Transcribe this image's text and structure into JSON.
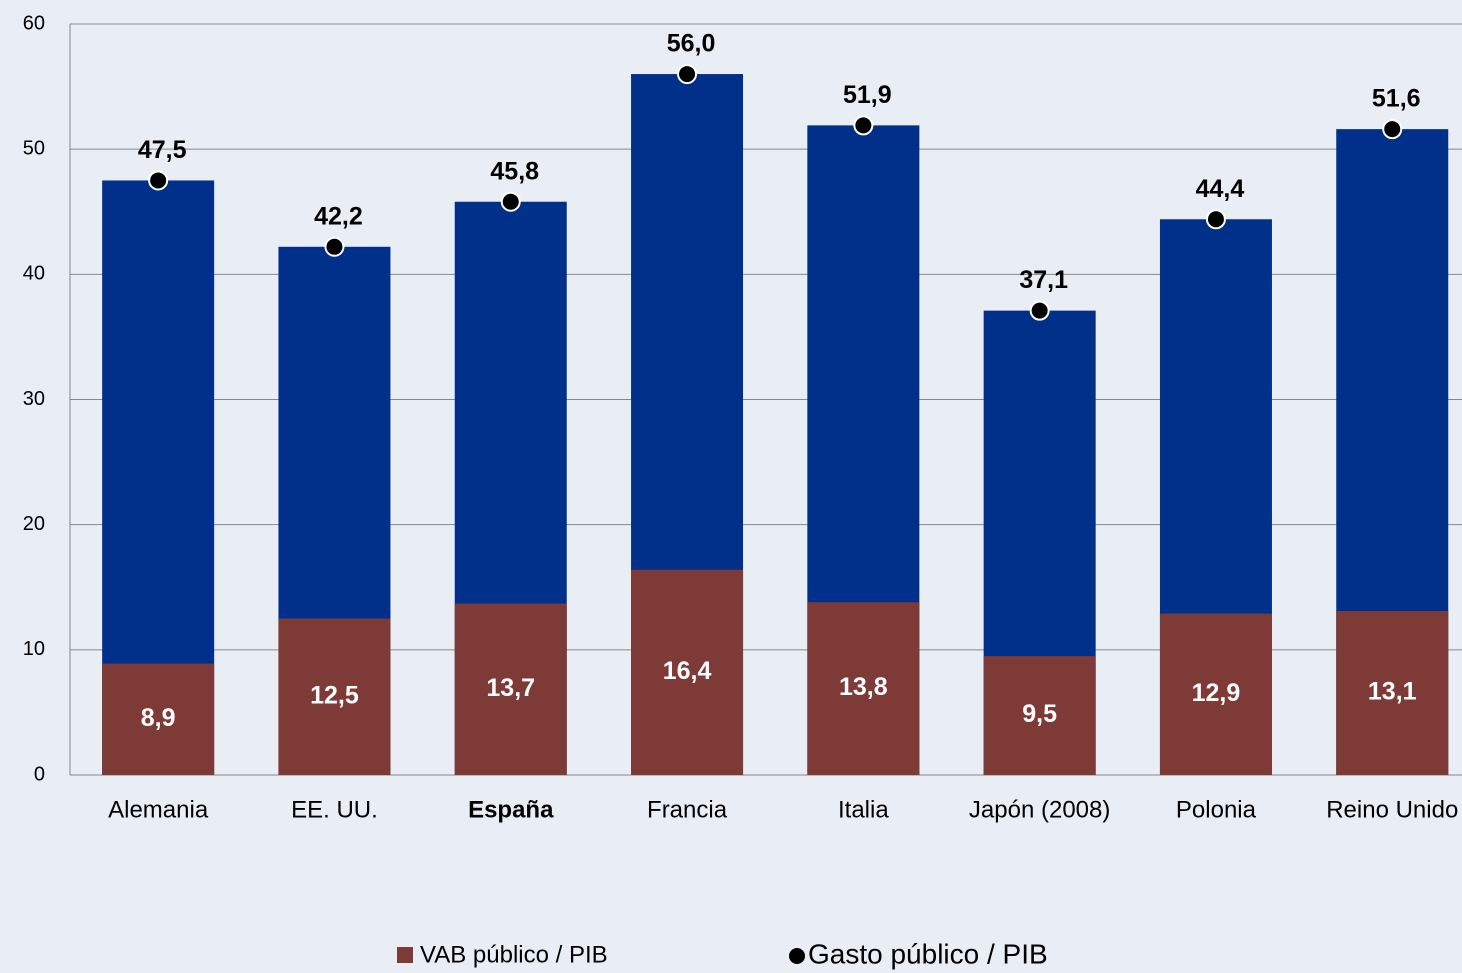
{
  "chart_data": {
    "type": "bar_dot",
    "categories": [
      "Alemania",
      "EE. UU.",
      "España",
      "Francia",
      "Italia",
      "Japón (2008)",
      "Polonia",
      "Reino Unido"
    ],
    "highlight_index": 2,
    "series": [
      {
        "name": "VAB público / PIB",
        "color": "#7d3a37",
        "values": [
          8.9,
          12.5,
          13.7,
          16.4,
          13.8,
          9.5,
          12.9,
          13.1
        ],
        "value_labels": [
          "8,9",
          "12,5",
          "13,7",
          "16,4",
          "13,8",
          "9,5",
          "12,9",
          "13,1"
        ]
      },
      {
        "name": "Gasto público / PIB",
        "color": "#000000",
        "bar_color": "#00308a",
        "values": [
          47.5,
          42.2,
          45.8,
          56.0,
          51.9,
          37.1,
          44.4,
          51.6
        ],
        "value_labels": [
          "47,5",
          "42,2",
          "45,8",
          "56,0",
          "51,9",
          "37,1",
          "44,4",
          "51,6"
        ]
      }
    ],
    "ylim": [
      0,
      60
    ],
    "yticks": [
      0,
      10,
      20,
      30,
      40,
      50,
      60
    ],
    "grid": true
  }
}
